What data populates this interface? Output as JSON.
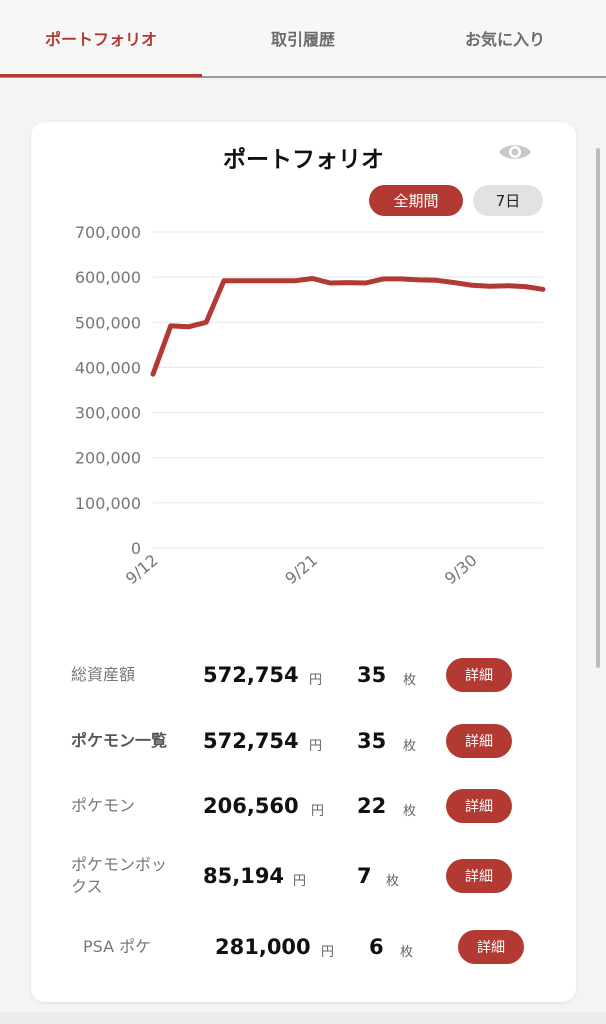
{
  "tabs": {
    "portfolio": "ポートフォリオ",
    "history": "取引履歴",
    "favorites": "お気に入り"
  },
  "card": {
    "title": "ポートフォリオ",
    "toggle_icon": "eye-icon",
    "range_all": "全期間",
    "range_7d": "7日"
  },
  "chart_data": {
    "type": "line",
    "title": "",
    "xlabel": "",
    "ylabel": "",
    "ylim": [
      0,
      700000
    ],
    "y_ticks": [
      "700,000",
      "600,000",
      "500,000",
      "400,000",
      "300,000",
      "200,000",
      "100,000",
      "0"
    ],
    "x_tick_labels": [
      "9/12",
      "9/21",
      "9/30"
    ],
    "x_tick_days": [
      12,
      21,
      30
    ],
    "grid": true,
    "line_color": "#b23a33",
    "series": [
      {
        "x": [
          12,
          13,
          14,
          15,
          16,
          17,
          18,
          19,
          20,
          21,
          22,
          23,
          24,
          25,
          26,
          27,
          28,
          29,
          30,
          31,
          32,
          33,
          34
        ],
        "values": [
          385000,
          492000,
          490000,
          500000,
          592000,
          592000,
          592000,
          592000,
          592000,
          597000,
          587000,
          588000,
          587000,
          596000,
          596000,
          594000,
          593000,
          588000,
          582000,
          580000,
          581000,
          579000,
          573000
        ]
      }
    ]
  },
  "summary": [
    {
      "label": "総資産額",
      "amount": "572,754",
      "yen": "円",
      "count": "35",
      "mai": "枚",
      "detail": "詳細"
    },
    {
      "label": "ポケモン一覧",
      "amount": "572,754",
      "yen": "円",
      "count": "35",
      "mai": "枚",
      "detail": "詳細"
    },
    {
      "label": "ポケモン",
      "amount": "206,560",
      "yen": "円",
      "count": "22",
      "mai": "枚",
      "detail": "詳細"
    },
    {
      "label_line1": "ポケモンボッ",
      "label_line2": "クス",
      "amount": "85,194",
      "yen": "円",
      "count": "7",
      "mai": "枚",
      "detail": "詳細"
    },
    {
      "label": "PSA ポケ",
      "amount": "281,000",
      "yen": "円",
      "count": "6",
      "mai": "枚",
      "detail": "詳細"
    }
  ]
}
